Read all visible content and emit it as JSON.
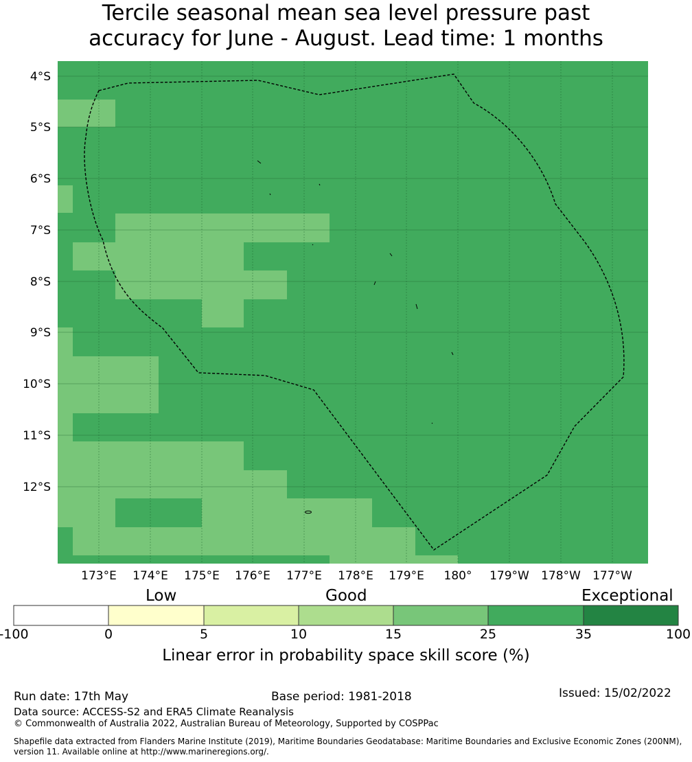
{
  "title": {
    "line1": "Tercile seasonal mean sea level pressure past",
    "line2": "accuracy for June - August. Lead time: 1 months"
  },
  "map": {
    "lat_labels": [
      "4°S",
      "5°S",
      "6°S",
      "7°S",
      "8°S",
      "9°S",
      "10°S",
      "11°S",
      "12°S"
    ],
    "lon_labels": [
      "173°E",
      "174°E",
      "175°E",
      "176°E",
      "177°E",
      "178°E",
      "179°E",
      "180°",
      "179°W",
      "178°W",
      "177°W"
    ],
    "colors": {
      "cat_15_25": "#78c679",
      "cat_25_35": "#41ab5d",
      "boundary": "#000000"
    },
    "background_category": "25-35",
    "lighter_regions_category": "15-25",
    "boundary_style": "dashed"
  },
  "colorbar": {
    "categories": [
      "Low",
      "Good",
      "Exceptional"
    ],
    "ticks": [
      "-100",
      "0",
      "5",
      "10",
      "15",
      "25",
      "35",
      "100"
    ],
    "colors": [
      "#ffffff",
      "#ffffcc",
      "#d9f0a3",
      "#addd8e",
      "#78c679",
      "#41ab5d",
      "#238443"
    ],
    "label": "Linear error in probability space skill score (%)"
  },
  "footer": {
    "run_date": "Run date: 17th May",
    "base_period": "Base period: 1981-2018",
    "issued": "Issued: 15/02/2022",
    "data_source": "Data source: ACCESS-S2 and ERA5 Climate Reanalysis",
    "copyright": "© Commonwealth of Australia 2022, Australian Bureau of Meteorology, Supported by COSPPac",
    "shapefile_line1": "Shapefile data extracted from Flanders Marine Institute (2019), Maritime Boundaries Geodatabase: Maritime Boundaries and Exclusive Economic Zones (200NM),",
    "shapefile_line2": "version 11. Available online at http://www.marineregions.org/."
  }
}
